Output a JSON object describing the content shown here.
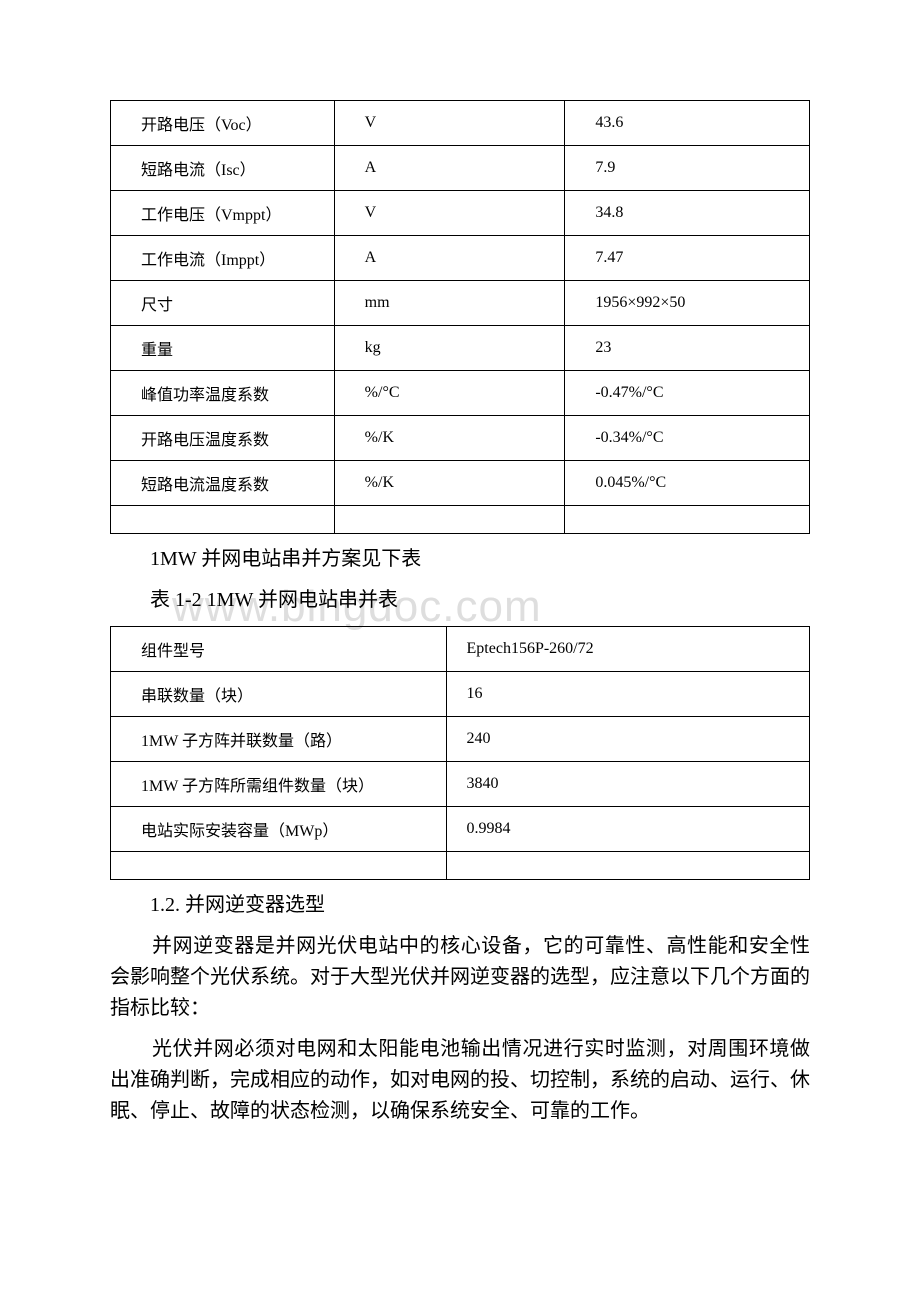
{
  "watermark": "www.bingdoc.com",
  "table1": {
    "rows": [
      [
        "开路电压（Voc）",
        "V",
        "43.6"
      ],
      [
        "短路电流（Isc）",
        "A",
        "7.9"
      ],
      [
        "工作电压（Vmppt）",
        "V",
        "34.8"
      ],
      [
        "工作电流（Imppt）",
        "A",
        "7.47"
      ],
      [
        "尺寸",
        "mm",
        "1956×992×50"
      ],
      [
        "重量",
        "kg",
        "23"
      ],
      [
        "峰值功率温度系数",
        "%/°C",
        "-0.47%/°C"
      ],
      [
        "开路电压温度系数",
        "%/K",
        "-0.34%/°C"
      ],
      [
        "短路电流温度系数",
        "%/K",
        "0.045%/°C"
      ]
    ]
  },
  "text1": "1MW 并网电站串并方案见下表",
  "text2": "表 1-2 1MW 并网电站串并表",
  "table2": {
    "rows": [
      [
        "组件型号",
        "Eptech156P-260/72"
      ],
      [
        "串联数量（块）",
        "16"
      ],
      [
        "1MW 子方阵并联数量（路）",
        "240"
      ],
      [
        "1MW 子方阵所需组件数量（块）",
        "3840"
      ],
      [
        "电站实际安装容量（MWp）",
        "0.9984"
      ]
    ]
  },
  "heading": "1.2. 并网逆变器选型",
  "para1": "并网逆变器是并网光伏电站中的核心设备，它的可靠性、高性能和安全性会影响整个光伏系统。对于大型光伏并网逆变器的选型，应注意以下几个方面的指标比较：",
  "para2": "光伏并网必须对电网和太阳能电池输出情况进行实时监测，对周围环境做出准确判断，完成相应的动作，如对电网的投、切控制，系统的启动、运行、休眠、停止、故障的状态检测，以确保系统安全、可靠的工作。"
}
